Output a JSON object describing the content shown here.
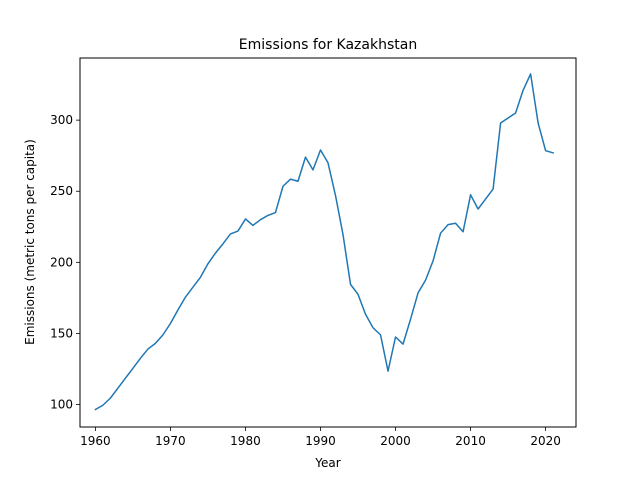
{
  "chart_data": {
    "type": "line",
    "title": "Emissions for Kazakhstan",
    "xlabel": "Year",
    "ylabel": "Emissions (metric tons per capita)",
    "xlim": [
      1957.95,
      2024.05
    ],
    "ylim": [
      84.2,
      343.7
    ],
    "xticks": [
      1960,
      1970,
      1980,
      1990,
      2000,
      2010,
      2020
    ],
    "yticks": [
      100,
      150,
      200,
      250,
      300
    ],
    "grid": false,
    "legend": "none",
    "color": "#1f77b4",
    "x": [
      1960,
      1961,
      1962,
      1963,
      1964,
      1965,
      1966,
      1967,
      1968,
      1969,
      1970,
      1971,
      1972,
      1973,
      1974,
      1975,
      1976,
      1977,
      1978,
      1979,
      1980,
      1981,
      1982,
      1983,
      1984,
      1985,
      1986,
      1987,
      1988,
      1989,
      1990,
      1991,
      1992,
      1993,
      1994,
      1995,
      1996,
      1997,
      1998,
      1999,
      2000,
      2001,
      2002,
      2003,
      2004,
      2005,
      2006,
      2007,
      2008,
      2009,
      2010,
      2011,
      2012,
      2013,
      2014,
      2015,
      2016,
      2017,
      2018,
      2019,
      2020,
      2021
    ],
    "y": [
      96.5,
      99.5,
      104.5,
      111.5,
      118.5,
      125.5,
      132.5,
      139,
      143,
      149,
      157,
      166.5,
      175.5,
      182.5,
      189.5,
      199,
      206.5,
      213,
      220,
      222,
      230.5,
      226,
      230,
      233,
      235,
      253.5,
      258.5,
      257,
      274,
      265,
      279,
      270,
      247,
      219.5,
      184.5,
      177.5,
      163.5,
      154,
      149,
      123.5,
      147.5,
      142.5,
      160,
      178.5,
      187.5,
      201,
      220.5,
      226.5,
      227.5,
      221.5,
      247.5,
      237.5,
      244.5,
      251.5,
      298,
      301.5,
      305,
      321,
      332.5,
      298,
      278.5,
      277
    ]
  }
}
